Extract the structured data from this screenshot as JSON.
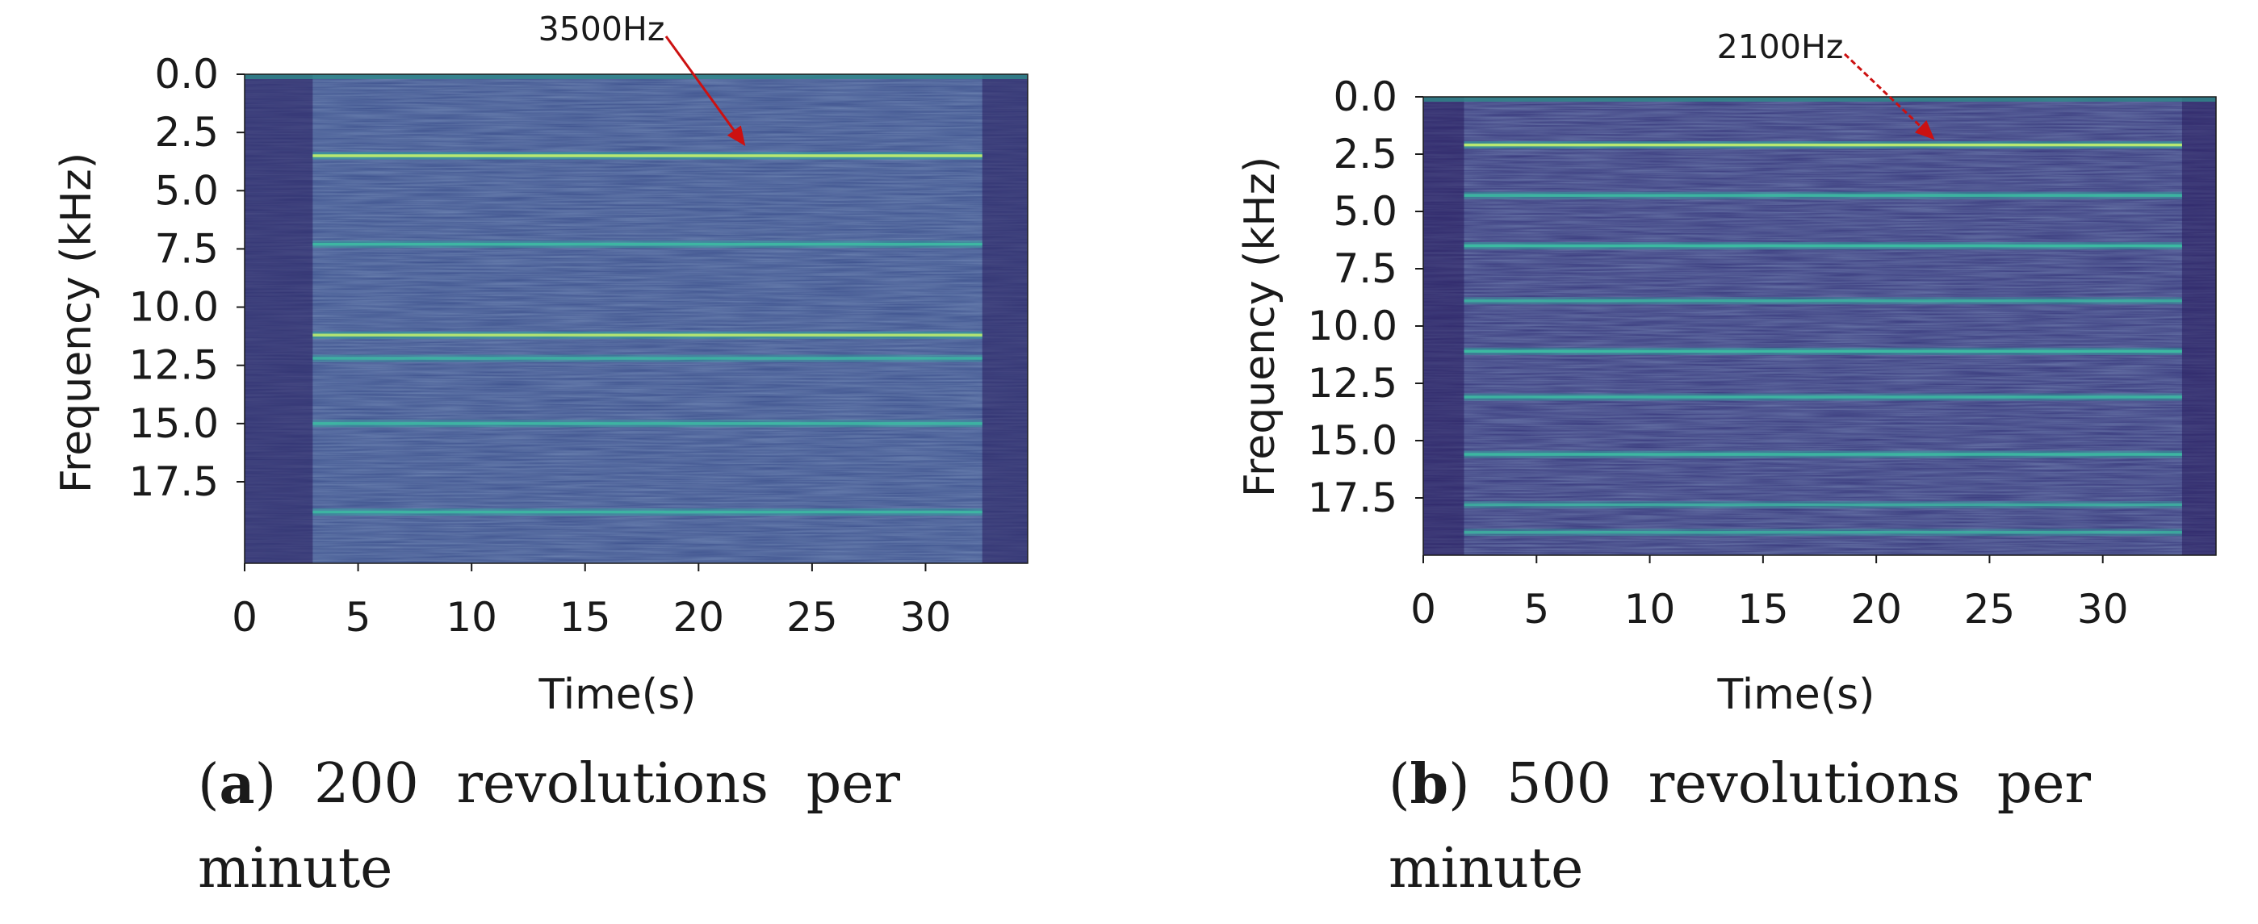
{
  "chart_data": [
    {
      "id": "a",
      "type": "heatmap",
      "title": "",
      "xlabel": "Time(s)",
      "ylabel": "Frequency (kHz)",
      "xlim": [
        0,
        34.5
      ],
      "ylim": [
        0,
        21
      ],
      "x_ticks": [
        0,
        5,
        10,
        15,
        20,
        25,
        30
      ],
      "x_tick_labels": [
        "0",
        "5",
        "10",
        "15",
        "20",
        "25",
        "30"
      ],
      "y_ticks": [
        0,
        2.5,
        5,
        7.5,
        10,
        12.5,
        15,
        17.5
      ],
      "y_tick_labels": [
        "0.0",
        "2.5",
        "5.0",
        "7.5",
        "10.0",
        "12.5",
        "15.0",
        "17.5"
      ],
      "active_interval_s": [
        3,
        32.5
      ],
      "background_color": "#3b4f8c",
      "tonal_lines": [
        {
          "freq_khz": 3.5,
          "strength": 1.0
        },
        {
          "freq_khz": 7.3,
          "strength": 0.55
        },
        {
          "freq_khz": 11.2,
          "strength": 0.85
        },
        {
          "freq_khz": 12.2,
          "strength": 0.35
        },
        {
          "freq_khz": 15.0,
          "strength": 0.5
        },
        {
          "freq_khz": 18.8,
          "strength": 0.5
        }
      ],
      "annotation": {
        "text": "3500Hz",
        "target_time_s": 22,
        "target_freq_khz": 3.0,
        "color": "#cc1111"
      },
      "caption": {
        "letter": "a",
        "text": "200 revolutions per minute"
      }
    },
    {
      "id": "b",
      "type": "heatmap",
      "title": "",
      "xlabel": "Time(s)",
      "ylabel": "Frequency (kHz)",
      "xlim": [
        0,
        35
      ],
      "ylim": [
        0,
        20
      ],
      "x_ticks": [
        0,
        5,
        10,
        15,
        20,
        25,
        30
      ],
      "x_tick_labels": [
        "0",
        "5",
        "10",
        "15",
        "20",
        "25",
        "30"
      ],
      "y_ticks": [
        0,
        2.5,
        5,
        7.5,
        10,
        12.5,
        15,
        17.5
      ],
      "y_tick_labels": [
        "0.0",
        "2.5",
        "5.0",
        "7.5",
        "10.0",
        "12.5",
        "15.0",
        "17.5"
      ],
      "active_interval_s": [
        1.8,
        33.5
      ],
      "background_color": "#35357a",
      "tonal_lines": [
        {
          "freq_khz": 2.1,
          "strength": 1.0
        },
        {
          "freq_khz": 4.3,
          "strength": 0.55
        },
        {
          "freq_khz": 6.5,
          "strength": 0.7
        },
        {
          "freq_khz": 8.9,
          "strength": 0.35
        },
        {
          "freq_khz": 11.1,
          "strength": 0.7
        },
        {
          "freq_khz": 13.1,
          "strength": 0.5
        },
        {
          "freq_khz": 15.6,
          "strength": 0.6
        },
        {
          "freq_khz": 17.8,
          "strength": 0.3
        },
        {
          "freq_khz": 19.0,
          "strength": 0.3
        }
      ],
      "annotation": {
        "text": "2100Hz",
        "target_time_s": 22.5,
        "target_freq_khz": 1.8,
        "color": "#cc1111"
      },
      "caption": {
        "letter": "b",
        "text": "500 revolutions per minute"
      }
    }
  ],
  "captions": {
    "a": {
      "letter": "a",
      "words": [
        "200",
        "revolutions",
        "per"
      ],
      "line2": "minute"
    },
    "b": {
      "letter": "b",
      "words": [
        "500",
        "revolutions",
        "per"
      ],
      "line2": "minute"
    }
  }
}
